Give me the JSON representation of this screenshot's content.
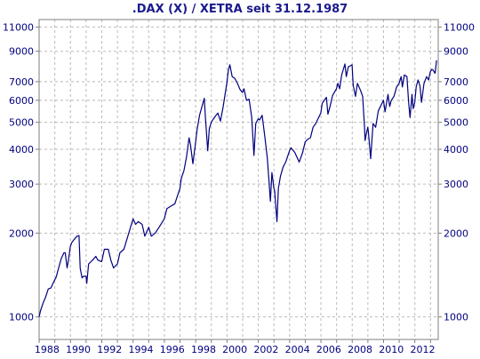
{
  "chart_data": {
    "type": "line",
    "title": ".DAX (X) / XETRA seit 31.12.1987",
    "xlabel": "",
    "ylabel": "",
    "y_scale": "log",
    "grid": true,
    "line_color": "#000080",
    "x_ticks": [
      "1988",
      "1990",
      "1992",
      "1994",
      "1996",
      "1998",
      "2000",
      "2002",
      "2004",
      "2006",
      "2008",
      "2010",
      "2012"
    ],
    "y_ticks": [
      1000,
      2000,
      3000,
      4000,
      5000,
      6000,
      7000,
      9000,
      11000
    ],
    "y_tick_labels": [
      "1000",
      "2000",
      "3000",
      "4000",
      "5000",
      "6000",
      "7000",
      "9000",
      "11000"
    ],
    "xlim": [
      "1987-12-31",
      "2013-06-30"
    ],
    "ylim": [
      830,
      11700
    ],
    "series": [
      {
        "x": [
          "1987-12-31",
          "1988-02-01",
          "1988-04-01",
          "1988-06-01",
          "1988-08-01",
          "1988-10-01",
          "1988-12-01",
          "1989-02-01",
          "1989-04-01",
          "1989-06-01",
          "1989-08-01",
          "1989-09-01",
          "1989-10-15",
          "1989-11-15",
          "1989-12-29",
          "1990-02-01",
          "1990-04-01",
          "1990-06-01",
          "1990-07-20",
          "1990-08-15",
          "1990-09-28",
          "1990-11-01",
          "1990-12-31",
          "1991-01-16",
          "1991-03-01",
          "1991-06-01",
          "1991-08-15",
          "1991-10-01",
          "1991-12-31",
          "1992-03-01",
          "1992-06-01",
          "1992-08-01",
          "1992-10-01",
          "1992-12-31",
          "1993-03-01",
          "1993-06-01",
          "1993-09-01",
          "1993-12-31",
          "1994-03-01",
          "1994-05-01",
          "1994-08-01",
          "1994-10-01",
          "1994-12-31",
          "1995-03-01",
          "1995-06-01",
          "1995-09-01",
          "1995-12-29",
          "1996-03-01",
          "1996-06-01",
          "1996-09-01",
          "1996-12-31",
          "1997-02-01",
          "1997-04-01",
          "1997-06-01",
          "1997-07-31",
          "1997-09-01",
          "1997-10-28",
          "1997-12-31",
          "1998-02-01",
          "1998-04-01",
          "1998-07-20",
          "1998-08-15",
          "1998-10-08",
          "1998-11-15",
          "1998-12-31",
          "1999-02-01",
          "1999-04-01",
          "1999-06-01",
          "1999-08-01",
          "1999-10-01",
          "1999-12-30",
          "2000-02-01",
          "2000-03-07",
          "2000-05-01",
          "2000-07-01",
          "2000-09-01",
          "2000-11-01",
          "2000-12-29",
          "2001-02-01",
          "2001-04-01",
          "2001-06-01",
          "2001-08-01",
          "2001-09-21",
          "2001-11-01",
          "2001-12-31",
          "2002-02-01",
          "2002-04-01",
          "2002-06-01",
          "2002-08-01",
          "2002-10-09",
          "2002-11-15",
          "2002-12-30",
          "2003-01-15",
          "2003-03-12",
          "2003-04-15",
          "2003-06-01",
          "2003-08-01",
          "2003-10-01",
          "2003-12-30",
          "2004-02-01",
          "2004-05-01",
          "2004-08-13",
          "2004-11-01",
          "2004-12-30",
          "2005-03-01",
          "2005-05-01",
          "2005-07-01",
          "2005-09-01",
          "2005-12-30",
          "2006-02-01",
          "2006-05-09",
          "2006-06-13",
          "2006-08-01",
          "2006-10-01",
          "2006-12-29",
          "2007-02-01",
          "2007-03-14",
          "2007-05-01",
          "2007-07-13",
          "2007-08-16",
          "2007-10-01",
          "2007-12-28",
          "2008-01-22",
          "2008-03-17",
          "2008-05-01",
          "2008-07-15",
          "2008-09-01",
          "2008-10-15",
          "2008-10-27",
          "2008-12-01",
          "2008-12-30",
          "2009-01-15",
          "2009-03-06",
          "2009-05-01",
          "2009-07-01",
          "2009-09-01",
          "2009-12-30",
          "2010-02-05",
          "2010-04-15",
          "2010-05-25",
          "2010-07-01",
          "2010-09-01",
          "2010-11-01",
          "2010-12-30",
          "2011-02-15",
          "2011-03-16",
          "2011-05-02",
          "2011-07-01",
          "2011-08-09",
          "2011-09-12",
          "2011-10-27",
          "2011-11-23",
          "2011-12-30",
          "2012-02-01",
          "2012-03-16",
          "2012-05-01",
          "2012-06-04",
          "2012-08-01",
          "2012-10-01",
          "2012-11-15",
          "2012-12-28",
          "2013-01-31",
          "2013-03-01",
          "2013-04-18",
          "2013-05-22"
        ],
        "y": [
          1000,
          1050,
          1120,
          1180,
          1260,
          1270,
          1330,
          1390,
          1500,
          1620,
          1700,
          1700,
          1500,
          1600,
          1790,
          1850,
          1900,
          1950,
          1960,
          1500,
          1380,
          1400,
          1400,
          1320,
          1550,
          1600,
          1650,
          1600,
          1580,
          1750,
          1750,
          1600,
          1500,
          1550,
          1700,
          1750,
          1950,
          2250,
          2150,
          2200,
          2150,
          1950,
          2100,
          1950,
          2000,
          2100,
          2250,
          2450,
          2500,
          2550,
          2900,
          3150,
          3350,
          3750,
          4400,
          4150,
          3550,
          4250,
          4700,
          5300,
          6100,
          5200,
          3950,
          4750,
          5000,
          5100,
          5250,
          5400,
          5050,
          5650,
          6950,
          7700,
          8050,
          7300,
          7200,
          6900,
          6550,
          6400,
          6600,
          6000,
          6050,
          5200,
          3800,
          4950,
          5150,
          5100,
          5300,
          4450,
          3700,
          2600,
          3300,
          2900,
          2850,
          2200,
          2900,
          3200,
          3450,
          3600,
          3950,
          4050,
          3900,
          3600,
          3900,
          4250,
          4350,
          4400,
          4800,
          4950,
          5400,
          5850,
          6150,
          5350,
          5700,
          6250,
          6600,
          6900,
          6600,
          7400,
          8100,
          7300,
          7900,
          8050,
          6800,
          6200,
          6900,
          6500,
          6200,
          4800,
          4300,
          4600,
          4800,
          4600,
          3700,
          4950,
          4800,
          5500,
          6000,
          5450,
          6300,
          5700,
          6000,
          6200,
          6700,
          6900,
          7300,
          6700,
          7400,
          7300,
          5900,
          5200,
          6300,
          5600,
          5900,
          6700,
          7100,
          6750,
          5900,
          6900,
          7300,
          7100,
          7600,
          7750,
          7700,
          7500,
          8350
        ]
      }
    ]
  }
}
